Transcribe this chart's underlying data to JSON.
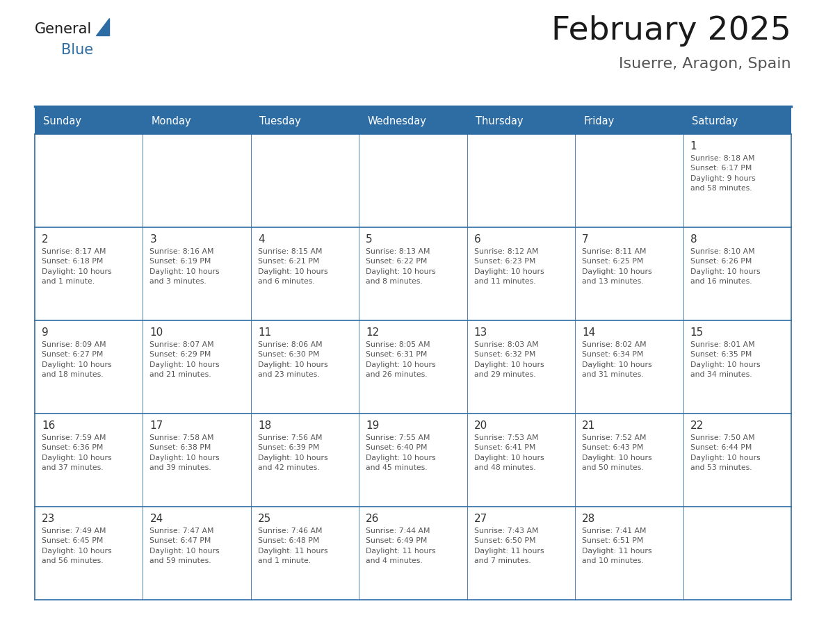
{
  "title": "February 2025",
  "subtitle": "Isuerre, Aragon, Spain",
  "days_of_week": [
    "Sunday",
    "Monday",
    "Tuesday",
    "Wednesday",
    "Thursday",
    "Friday",
    "Saturday"
  ],
  "header_bg_color": "#2E6DA4",
  "header_text_color": "#FFFFFF",
  "cell_bg_color": "#FFFFFF",
  "border_color": "#2E6DA4",
  "day_num_color": "#333333",
  "cell_text_color": "#555555",
  "title_color": "#1a1a1a",
  "subtitle_color": "#555555",
  "logo_general_color": "#1a1a1a",
  "logo_blue_color": "#2E6DA4",
  "logo_triangle_color": "#2E6DA4",
  "calendar_data": [
    [
      {
        "day": null,
        "info": ""
      },
      {
        "day": null,
        "info": ""
      },
      {
        "day": null,
        "info": ""
      },
      {
        "day": null,
        "info": ""
      },
      {
        "day": null,
        "info": ""
      },
      {
        "day": null,
        "info": ""
      },
      {
        "day": 1,
        "info": "Sunrise: 8:18 AM\nSunset: 6:17 PM\nDaylight: 9 hours\nand 58 minutes."
      }
    ],
    [
      {
        "day": 2,
        "info": "Sunrise: 8:17 AM\nSunset: 6:18 PM\nDaylight: 10 hours\nand 1 minute."
      },
      {
        "day": 3,
        "info": "Sunrise: 8:16 AM\nSunset: 6:19 PM\nDaylight: 10 hours\nand 3 minutes."
      },
      {
        "day": 4,
        "info": "Sunrise: 8:15 AM\nSunset: 6:21 PM\nDaylight: 10 hours\nand 6 minutes."
      },
      {
        "day": 5,
        "info": "Sunrise: 8:13 AM\nSunset: 6:22 PM\nDaylight: 10 hours\nand 8 minutes."
      },
      {
        "day": 6,
        "info": "Sunrise: 8:12 AM\nSunset: 6:23 PM\nDaylight: 10 hours\nand 11 minutes."
      },
      {
        "day": 7,
        "info": "Sunrise: 8:11 AM\nSunset: 6:25 PM\nDaylight: 10 hours\nand 13 minutes."
      },
      {
        "day": 8,
        "info": "Sunrise: 8:10 AM\nSunset: 6:26 PM\nDaylight: 10 hours\nand 16 minutes."
      }
    ],
    [
      {
        "day": 9,
        "info": "Sunrise: 8:09 AM\nSunset: 6:27 PM\nDaylight: 10 hours\nand 18 minutes."
      },
      {
        "day": 10,
        "info": "Sunrise: 8:07 AM\nSunset: 6:29 PM\nDaylight: 10 hours\nand 21 minutes."
      },
      {
        "day": 11,
        "info": "Sunrise: 8:06 AM\nSunset: 6:30 PM\nDaylight: 10 hours\nand 23 minutes."
      },
      {
        "day": 12,
        "info": "Sunrise: 8:05 AM\nSunset: 6:31 PM\nDaylight: 10 hours\nand 26 minutes."
      },
      {
        "day": 13,
        "info": "Sunrise: 8:03 AM\nSunset: 6:32 PM\nDaylight: 10 hours\nand 29 minutes."
      },
      {
        "day": 14,
        "info": "Sunrise: 8:02 AM\nSunset: 6:34 PM\nDaylight: 10 hours\nand 31 minutes."
      },
      {
        "day": 15,
        "info": "Sunrise: 8:01 AM\nSunset: 6:35 PM\nDaylight: 10 hours\nand 34 minutes."
      }
    ],
    [
      {
        "day": 16,
        "info": "Sunrise: 7:59 AM\nSunset: 6:36 PM\nDaylight: 10 hours\nand 37 minutes."
      },
      {
        "day": 17,
        "info": "Sunrise: 7:58 AM\nSunset: 6:38 PM\nDaylight: 10 hours\nand 39 minutes."
      },
      {
        "day": 18,
        "info": "Sunrise: 7:56 AM\nSunset: 6:39 PM\nDaylight: 10 hours\nand 42 minutes."
      },
      {
        "day": 19,
        "info": "Sunrise: 7:55 AM\nSunset: 6:40 PM\nDaylight: 10 hours\nand 45 minutes."
      },
      {
        "day": 20,
        "info": "Sunrise: 7:53 AM\nSunset: 6:41 PM\nDaylight: 10 hours\nand 48 minutes."
      },
      {
        "day": 21,
        "info": "Sunrise: 7:52 AM\nSunset: 6:43 PM\nDaylight: 10 hours\nand 50 minutes."
      },
      {
        "day": 22,
        "info": "Sunrise: 7:50 AM\nSunset: 6:44 PM\nDaylight: 10 hours\nand 53 minutes."
      }
    ],
    [
      {
        "day": 23,
        "info": "Sunrise: 7:49 AM\nSunset: 6:45 PM\nDaylight: 10 hours\nand 56 minutes."
      },
      {
        "day": 24,
        "info": "Sunrise: 7:47 AM\nSunset: 6:47 PM\nDaylight: 10 hours\nand 59 minutes."
      },
      {
        "day": 25,
        "info": "Sunrise: 7:46 AM\nSunset: 6:48 PM\nDaylight: 11 hours\nand 1 minute."
      },
      {
        "day": 26,
        "info": "Sunrise: 7:44 AM\nSunset: 6:49 PM\nDaylight: 11 hours\nand 4 minutes."
      },
      {
        "day": 27,
        "info": "Sunrise: 7:43 AM\nSunset: 6:50 PM\nDaylight: 11 hours\nand 7 minutes."
      },
      {
        "day": 28,
        "info": "Sunrise: 7:41 AM\nSunset: 6:51 PM\nDaylight: 11 hours\nand 10 minutes."
      },
      {
        "day": null,
        "info": ""
      }
    ]
  ]
}
